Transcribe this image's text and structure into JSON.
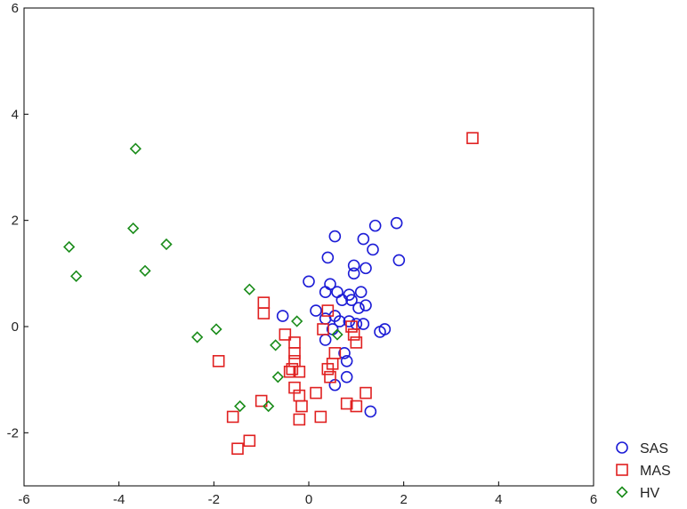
{
  "chart_data": {
    "type": "scatter",
    "xlim": [
      -6,
      6
    ],
    "ylim": [
      -3,
      6
    ],
    "x_ticks": [
      "-6",
      "-4",
      "-2",
      "0",
      "2",
      "4",
      "6"
    ],
    "y_ticks": [
      "-2",
      "0",
      "2",
      "4",
      "6"
    ],
    "x_tick_values": [
      -6,
      -4,
      -2,
      0,
      2,
      4,
      6
    ],
    "y_tick_values": [
      -2,
      0,
      2,
      4,
      6
    ],
    "grid": false,
    "legend_position": "bottom-right",
    "series": [
      {
        "name": "SAS",
        "marker": "circle",
        "color": "#1c1cd6",
        "points": [
          [
            1.85,
            1.95
          ],
          [
            1.4,
            1.9
          ],
          [
            0.55,
            1.7
          ],
          [
            1.15,
            1.65
          ],
          [
            1.35,
            1.45
          ],
          [
            0.4,
            1.3
          ],
          [
            1.9,
            1.25
          ],
          [
            0.95,
            1.15
          ],
          [
            1.2,
            1.1
          ],
          [
            0.95,
            1.0
          ],
          [
            0.0,
            0.85
          ],
          [
            0.45,
            0.8
          ],
          [
            0.85,
            0.6
          ],
          [
            1.1,
            0.65
          ],
          [
            0.35,
            0.65
          ],
          [
            0.6,
            0.65
          ],
          [
            0.7,
            0.5
          ],
          [
            0.9,
            0.5
          ],
          [
            1.2,
            0.4
          ],
          [
            1.05,
            0.35
          ],
          [
            0.15,
            0.3
          ],
          [
            0.55,
            0.2
          ],
          [
            0.35,
            0.15
          ],
          [
            -0.55,
            0.2
          ],
          [
            0.65,
            0.1
          ],
          [
            0.85,
            0.1
          ],
          [
            1.0,
            0.05
          ],
          [
            1.15,
            0.05
          ],
          [
            0.5,
            -0.05
          ],
          [
            1.6,
            -0.05
          ],
          [
            1.5,
            -0.1
          ],
          [
            0.35,
            -0.25
          ],
          [
            0.75,
            -0.5
          ],
          [
            0.8,
            -0.65
          ],
          [
            0.55,
            -1.1
          ],
          [
            0.8,
            -0.95
          ],
          [
            1.3,
            -1.6
          ]
        ]
      },
      {
        "name": "MAS",
        "marker": "square",
        "color": "#e02020",
        "points": [
          [
            3.45,
            3.55
          ],
          [
            -0.95,
            0.45
          ],
          [
            -0.95,
            0.25
          ],
          [
            0.4,
            0.3
          ],
          [
            0.3,
            -0.05
          ],
          [
            0.9,
            0.0
          ],
          [
            -0.5,
            -0.15
          ],
          [
            0.95,
            -0.15
          ],
          [
            -0.3,
            -0.3
          ],
          [
            1.0,
            -0.3
          ],
          [
            0.55,
            -0.5
          ],
          [
            -0.3,
            -0.5
          ],
          [
            -0.3,
            -0.65
          ],
          [
            0.5,
            -0.7
          ],
          [
            -0.35,
            -0.8
          ],
          [
            0.4,
            -0.8
          ],
          [
            -0.4,
            -0.85
          ],
          [
            -0.2,
            -0.85
          ],
          [
            0.45,
            -0.95
          ],
          [
            -1.9,
            -0.65
          ],
          [
            -0.3,
            -1.15
          ],
          [
            -0.2,
            -1.3
          ],
          [
            0.15,
            -1.25
          ],
          [
            1.2,
            -1.25
          ],
          [
            -1.0,
            -1.4
          ],
          [
            0.8,
            -1.45
          ],
          [
            -0.15,
            -1.5
          ],
          [
            1.0,
            -1.5
          ],
          [
            -1.6,
            -1.7
          ],
          [
            0.25,
            -1.7
          ],
          [
            -0.2,
            -1.75
          ],
          [
            -1.25,
            -2.15
          ],
          [
            -1.5,
            -2.3
          ]
        ]
      },
      {
        "name": "HV",
        "marker": "diamond",
        "color": "#1a8c1a",
        "points": [
          [
            -3.65,
            3.35
          ],
          [
            -3.7,
            1.85
          ],
          [
            -3.0,
            1.55
          ],
          [
            -5.05,
            1.5
          ],
          [
            -3.45,
            1.05
          ],
          [
            -4.9,
            0.95
          ],
          [
            -1.25,
            0.7
          ],
          [
            -0.25,
            0.1
          ],
          [
            -1.95,
            -0.05
          ],
          [
            -2.35,
            -0.2
          ],
          [
            0.6,
            -0.15
          ],
          [
            -0.7,
            -0.35
          ],
          [
            -0.65,
            -0.95
          ],
          [
            -1.45,
            -1.5
          ],
          [
            -0.85,
            -1.5
          ]
        ]
      }
    ]
  }
}
